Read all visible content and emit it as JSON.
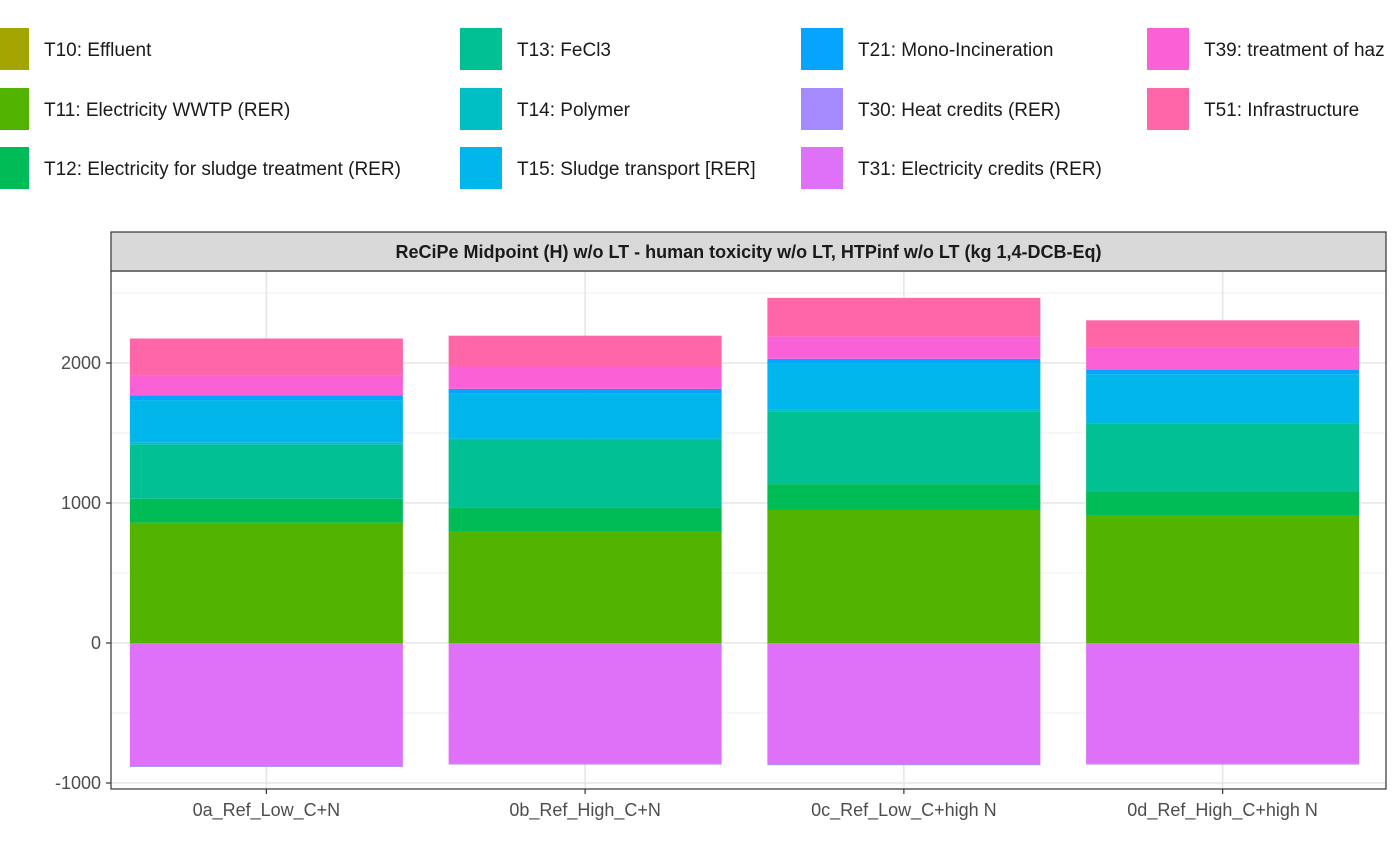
{
  "chart_data": {
    "type": "bar",
    "stacked": true,
    "panel_title": "ReCiPe Midpoint (H) w/o LT - human toxicity w/o LT, HTPinf w/o LT (kg 1,4-DCB-Eq)",
    "categories": [
      "0a_Ref_Low_C+N",
      "0b_Ref_High_C+N",
      "0c_Ref_Low_C+high N",
      "0d_Ref_High_C+high N"
    ],
    "y_ticks": [
      {
        "value": -1000,
        "label": "-1000"
      },
      {
        "value": 0,
        "label": "0"
      },
      {
        "value": 1000,
        "label": "1000"
      },
      {
        "value": 2000,
        "label": "2000"
      }
    ],
    "ylim": [
      -1000,
      2500
    ],
    "grid": true,
    "legend_position": "top",
    "legend": [
      {
        "name": "T10: Effluent",
        "color": "#A3A500"
      },
      {
        "name": "T11: Electricity WWTP (RER)",
        "color": "#53B400"
      },
      {
        "name": "T12: Electricity for sludge treatment (RER)",
        "color": "#00BC56"
      },
      {
        "name": "T13: FeCl3",
        "color": "#00C094"
      },
      {
        "name": "T14: Polymer",
        "color": "#00BFC4"
      },
      {
        "name": "T15: Sludge transport [RER]",
        "color": "#00B6EB"
      },
      {
        "name": "T21: Mono-Incineration",
        "color": "#06A4FF"
      },
      {
        "name": "T30: Heat credits (RER)",
        "color": "#A58AFF"
      },
      {
        "name": "T31: Electricity credits (RER)",
        "color": "#DF70F8"
      },
      {
        "name": "T39: treatment of haz",
        "color": "#FB61D7"
      },
      {
        "name": "T51: Infrastructure",
        "color": "#FF66A8"
      }
    ],
    "series_positive": [
      {
        "name": "T11: Electricity WWTP (RER)",
        "color": "#53B400",
        "values": [
          860,
          800,
          950,
          910
        ]
      },
      {
        "name": "T12: Electricity for sludge treatment (RER)",
        "color": "#00BC56",
        "values": [
          170,
          170,
          185,
          175
        ]
      },
      {
        "name": "T13: FeCl3",
        "color": "#00C094",
        "values": [
          390,
          480,
          520,
          480
        ]
      },
      {
        "name": "T14: Polymer",
        "color": "#00BFC4",
        "values": [
          10,
          10,
          10,
          10
        ]
      },
      {
        "name": "T15: Sludge transport [RER]",
        "color": "#00B6EB",
        "values": [
          305,
          325,
          335,
          345
        ]
      },
      {
        "name": "T21: Mono-Incineration",
        "color": "#06A4FF",
        "values": [
          35,
          30,
          30,
          30
        ]
      },
      {
        "name": "T39: treatment of haz",
        "color": "#FB61D7",
        "values": [
          140,
          160,
          160,
          160
        ]
      },
      {
        "name": "T51: Infrastructure",
        "color": "#FF66A8",
        "values": [
          265,
          220,
          275,
          195
        ]
      }
    ],
    "series_negative": [
      {
        "name": "T31: Electricity credits (RER)",
        "color": "#DF70F8",
        "values": [
          -875,
          -860,
          -865,
          -860
        ]
      },
      {
        "name": "T30: Heat credits (RER)",
        "color": "#A58AFF",
        "values": [
          -10,
          -8,
          -8,
          -8
        ]
      }
    ]
  }
}
